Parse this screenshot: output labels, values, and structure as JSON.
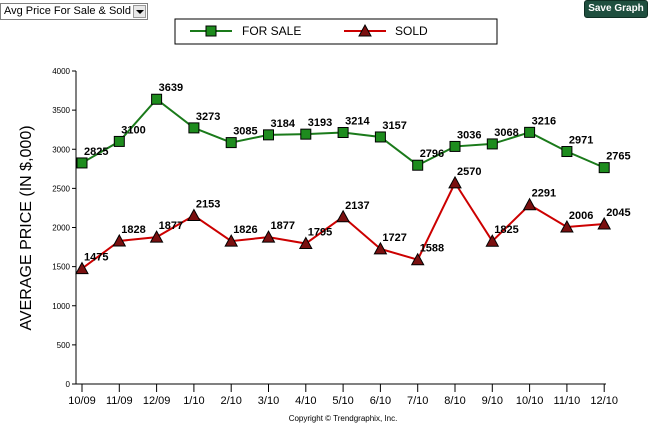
{
  "controls": {
    "metric_select_value": "Avg Price For Sale & Sold",
    "save_label": "Save Graph"
  },
  "colors": {
    "for_sale": "#1a7a1a",
    "for_sale_marker": "#1e8c1e",
    "sold": "#cc0000",
    "sold_marker": "#7a1010",
    "save_button": "#1f4f3f"
  },
  "chart_data": {
    "type": "line",
    "ylabel": "AVERAGE PRICE (IN $,000)",
    "ylim": [
      0,
      4000
    ],
    "yticks": [
      0,
      500,
      1000,
      1500,
      2000,
      2500,
      3000,
      3500,
      4000
    ],
    "categories": [
      "10/09",
      "11/09",
      "12/09",
      "1/10",
      "2/10",
      "3/10",
      "4/10",
      "5/10",
      "6/10",
      "7/10",
      "8/10",
      "9/10",
      "10/10",
      "11/10",
      "12/10"
    ],
    "legend_position": "top",
    "series": [
      {
        "name": "FOR SALE",
        "marker": "square",
        "values": [
          2825,
          3100,
          3639,
          3273,
          3085,
          3184,
          3193,
          3214,
          3157,
          2796,
          3036,
          3068,
          3216,
          2971,
          2765
        ]
      },
      {
        "name": "SOLD",
        "marker": "triangle",
        "values": [
          1475,
          1828,
          1877,
          2153,
          1826,
          1877,
          1795,
          2137,
          1727,
          1588,
          2570,
          1825,
          2291,
          2006,
          2045
        ]
      }
    ],
    "footer": "Copyright © Trendgraphix, Inc."
  }
}
